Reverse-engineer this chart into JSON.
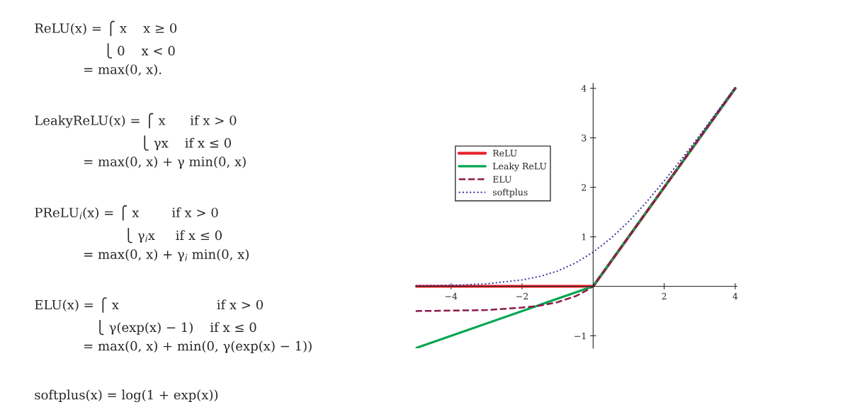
{
  "chart_data": {
    "type": "line",
    "legend": "top left",
    "grid": false,
    "xlim": [
      -5,
      4.05
    ],
    "ylim": [
      -1.25,
      4.1
    ],
    "xticks": [
      {
        "value": -4,
        "label": "−4"
      },
      {
        "value": -2,
        "label": "−2"
      },
      2,
      4
    ],
    "yticks": [
      {
        "value": -1,
        "label": "−1"
      },
      1,
      2,
      3,
      4
    ],
    "series": [
      {
        "name": "ReLU",
        "color": "#e8202a",
        "line_style": "solid",
        "x": [
          -5,
          0,
          4
        ],
        "values": [
          0,
          0,
          4
        ]
      },
      {
        "name": "Leaky ReLU",
        "color": "#00a550",
        "line_style": "solid",
        "x": [
          -5,
          0,
          4
        ],
        "values": [
          -1.25,
          0,
          4
        ]
      },
      {
        "name": "ELU",
        "color": "#8b1a4a",
        "line_style": "dashed",
        "x": [
          -5,
          -4,
          -3,
          -2,
          -1.5,
          -1,
          -0.5,
          -0.25,
          0,
          4
        ],
        "values": [
          -0.5,
          -0.49,
          -0.48,
          -0.43,
          -0.39,
          -0.32,
          -0.2,
          -0.11,
          0,
          4
        ]
      },
      {
        "name": "softplus",
        "color": "#2e2e9e",
        "line_style": "dotted",
        "x": [
          -5,
          -4,
          -3,
          -2,
          -1.5,
          -1,
          -0.5,
          0,
          0.5,
          1,
          1.5,
          2,
          2.5,
          3,
          4
        ],
        "values": [
          0.01,
          0.02,
          0.05,
          0.13,
          0.2,
          0.31,
          0.47,
          0.69,
          0.97,
          1.31,
          1.7,
          2.13,
          2.58,
          3.05,
          4.02
        ]
      }
    ],
    "annotations": [
      "ReLU(x) = ⎧ x    x ≥ 0\n                 ⎩ 0    x < 0\n            = max(0, x).",
      "LeakyReLU(x) = ⎧ x      if x > 0\n                          ⎩ γx    if x ≤ 0\n            = max(0, x) + γ min(0, x)",
      "PReLU$_{i}$(x) = ⎧ x        if x > 0\n                      ⎩ γ$_{i}$x     if x ≤ 0\n            = max(0, x) + γ$_{i}$ min(0, x)",
      "ELU(x) = ⎧ x                        if x > 0\n               ⎩ γ(exp(x) − 1)    if x ≤ 0\n            = max(0, x) + min(0, γ(exp(x) − 1))",
      "softplus(x) = log(1 + exp(x))"
    ]
  }
}
